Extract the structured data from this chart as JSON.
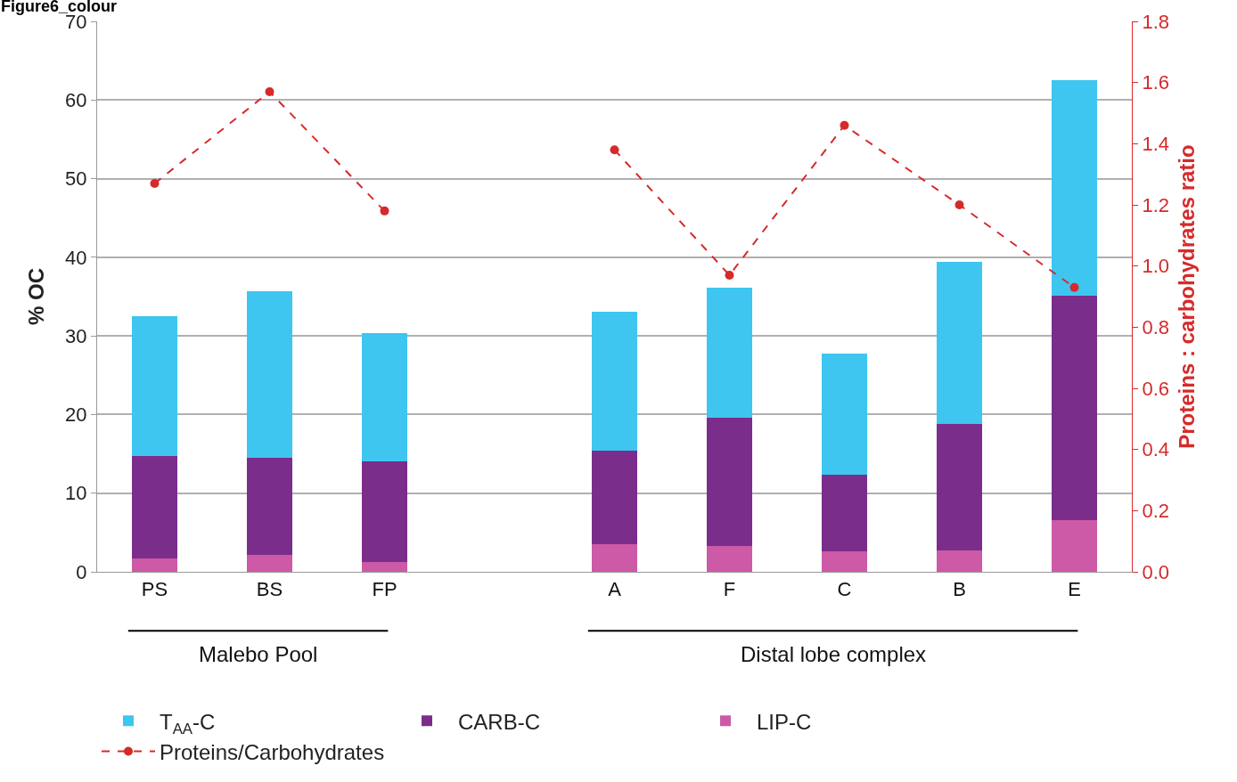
{
  "chart_data": {
    "type": "bar",
    "title": "Figure6_colour",
    "ylabel": "% OC",
    "y2label": "Proteins : carbohydrates ratio",
    "categories": [
      "PS",
      "BS",
      "FP",
      null,
      "A",
      "F",
      "C",
      "B",
      "E"
    ],
    "stacked": true,
    "series": [
      {
        "name": "LIP-C",
        "color": "#cc5aa6",
        "values": [
          1.7,
          2.1,
          1.2,
          null,
          3.5,
          3.3,
          2.6,
          2.7,
          6.6
        ]
      },
      {
        "name": "CARB-C",
        "color": "#7b2d8b",
        "values": [
          13.0,
          12.4,
          12.8,
          null,
          11.9,
          16.3,
          9.8,
          16.1,
          28.5
        ]
      },
      {
        "name": "T$_{AA}$-C",
        "color": "#3ec6f0",
        "values": [
          17.8,
          21.2,
          16.4,
          null,
          17.7,
          16.5,
          15.3,
          20.6,
          27.4
        ]
      },
      {
        "name": "Proteins/Carbohydrates",
        "type": "line",
        "axis": "y2",
        "color": "#d62a2a",
        "line_style": "dashed",
        "marker": "circle",
        "values": [
          1.27,
          1.57,
          1.18,
          null,
          1.38,
          0.97,
          1.46,
          1.2,
          0.93
        ]
      }
    ],
    "ylim": [
      0,
      70
    ],
    "yticks": [
      0,
      10,
      20,
      30,
      40,
      50,
      60,
      70
    ],
    "y2lim": [
      0,
      1.8
    ],
    "y2ticks": [
      {
        "value": 0,
        "label": "0.0"
      },
      0.2,
      0.4,
      0.6,
      0.8,
      {
        "value": 1,
        "label": "1.0"
      },
      1.2,
      1.4,
      1.6,
      1.8
    ],
    "grid": "y",
    "legend": "bottom",
    "annotations": [
      "Malebo Pool",
      "Distal lobe complex"
    ]
  }
}
